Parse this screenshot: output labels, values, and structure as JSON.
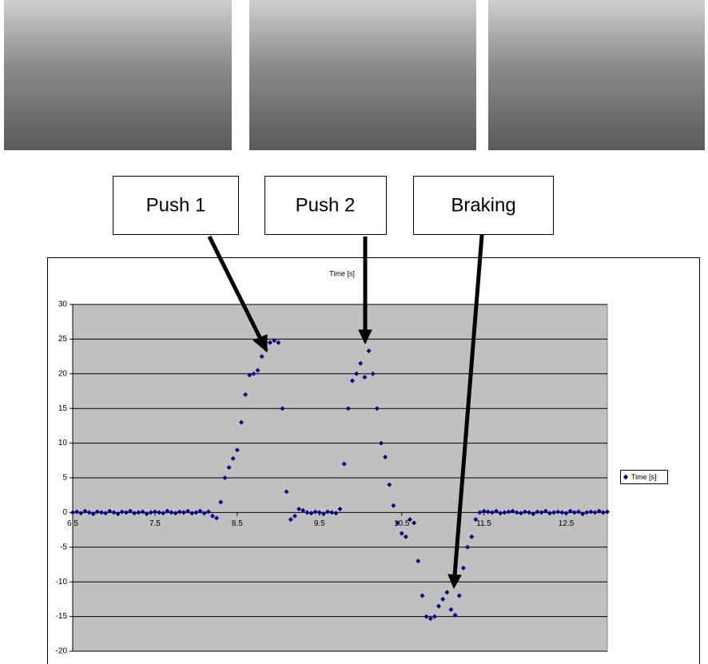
{
  "callouts": [
    "Push 1",
    "Push 2",
    "Braking"
  ],
  "chart_data": {
    "type": "scatter",
    "title": "Time [s]",
    "series": [
      {
        "name": "Time [s]",
        "color": "#000080",
        "x": [
          6.5,
          6.55,
          6.6,
          6.65,
          6.7,
          6.75,
          6.8,
          6.85,
          6.9,
          6.95,
          7.0,
          7.05,
          7.1,
          7.15,
          7.2,
          7.25,
          7.3,
          7.35,
          7.4,
          7.45,
          7.5,
          7.55,
          7.6,
          7.65,
          7.7,
          7.75,
          7.8,
          7.85,
          7.9,
          7.95,
          8.0,
          8.05,
          8.1,
          8.15,
          8.2,
          8.25,
          8.3,
          8.35,
          8.4,
          8.45,
          8.5,
          8.55,
          8.6,
          8.65,
          8.7,
          8.75,
          8.8,
          8.85,
          8.9,
          8.95,
          9.0,
          9.05,
          9.1,
          9.15,
          9.2,
          9.25,
          9.3,
          9.35,
          9.4,
          9.45,
          9.5,
          9.55,
          9.6,
          9.65,
          9.7,
          9.75,
          9.8,
          9.85,
          9.9,
          9.95,
          10.0,
          10.05,
          10.1,
          10.15,
          10.2,
          10.25,
          10.3,
          10.35,
          10.4,
          10.45,
          10.5,
          10.55,
          10.6,
          10.65,
          10.7,
          10.75,
          10.8,
          10.85,
          10.9,
          10.95,
          11.0,
          11.05,
          11.1,
          11.15,
          11.2,
          11.25,
          11.3,
          11.35,
          11.4,
          11.45,
          11.5,
          11.55,
          11.6,
          11.65,
          11.7,
          11.75,
          11.8,
          11.85,
          11.9,
          11.95,
          12.0,
          12.05,
          12.1,
          12.15,
          12.2,
          12.25,
          12.3,
          12.35,
          12.4,
          12.45,
          12.5,
          12.55,
          12.6,
          12.65,
          12.7,
          12.75,
          12.8,
          12.85,
          12.9,
          12.95,
          13.0
        ],
        "values": [
          0,
          0.1,
          -0.1,
          0.2,
          0,
          -0.2,
          0.1,
          0,
          -0.1,
          0.2,
          0,
          -0.2,
          0.1,
          0,
          0.2,
          -0.1,
          0,
          0.1,
          -0.2,
          0,
          0.1,
          0,
          -0.1,
          0.2,
          0,
          -0.1,
          0.1,
          0,
          0.2,
          -0.1,
          0,
          0.2,
          -0.1,
          0.1,
          -0.5,
          -0.8,
          1.5,
          5,
          6.5,
          7.8,
          9,
          13,
          17,
          19.8,
          20,
          20.5,
          22.5,
          23.5,
          24.5,
          24.8,
          24.5,
          15,
          3,
          -1,
          -0.5,
          0.5,
          0.3,
          0,
          -0.1,
          0.1,
          0,
          -0.2,
          0.1,
          0,
          -0.1,
          0.5,
          7,
          15,
          19,
          20,
          21.5,
          19.5,
          23.3,
          20,
          15,
          10,
          8,
          4,
          1,
          -1.5,
          -3,
          -3.5,
          -1,
          -1.5,
          -7,
          -12,
          -15,
          -15.3,
          -15,
          -13.5,
          -12.5,
          -11.5,
          -14,
          -14.8,
          -12,
          -8,
          -5,
          -3.5,
          -1,
          0,
          0.2,
          0.1,
          0,
          0.2,
          -0.1,
          0,
          0.1,
          0.2,
          0,
          -0.1,
          0.1,
          0,
          -0.2,
          0.1,
          0,
          0.2,
          -0.1,
          0,
          0.1,
          0,
          -0.1,
          0.2,
          0,
          0.1,
          -0.2,
          0,
          0.1,
          0,
          0.2,
          0,
          0.1
        ]
      }
    ],
    "xlim": [
      6.5,
      13
    ],
    "xticks": [
      6.5,
      7.5,
      8.5,
      9.5,
      10.5,
      11.5,
      12.5
    ],
    "ylim": [
      -20,
      30
    ],
    "yticks": [
      -20,
      -15,
      -10,
      -5,
      0,
      5,
      10,
      15,
      20,
      25,
      30
    ],
    "grid": true,
    "legend": "right"
  }
}
